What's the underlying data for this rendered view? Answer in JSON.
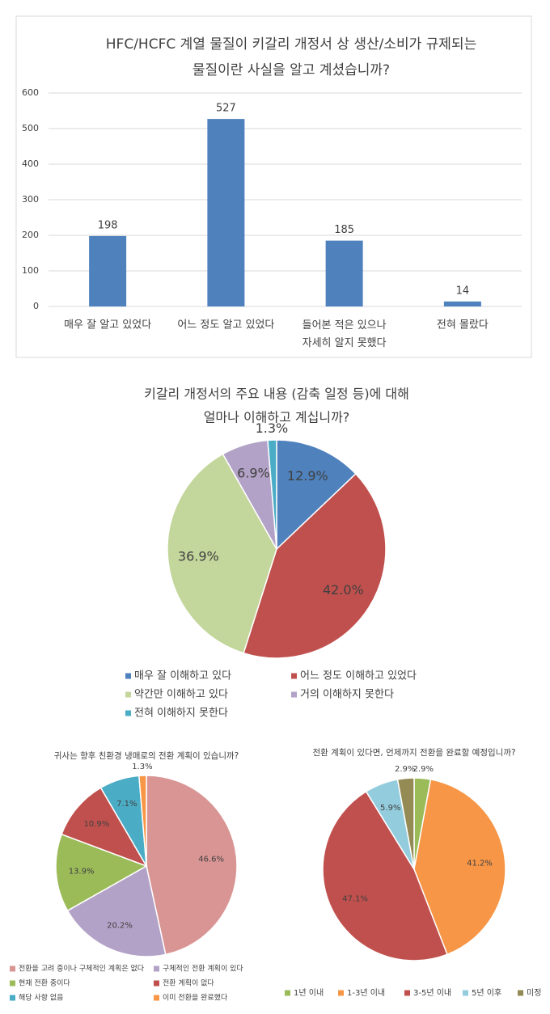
{
  "chart_data": [
    {
      "type": "bar",
      "title": [
        "HFC/HCFC 계열 물질이 키갈리 개정서 상 생산/소비가 규제되는",
        "물질이란 사실을 알고 계셨습니까?"
      ],
      "categories": [
        "매우 잘 알고 있었다",
        "어느 정도 알고 있었다",
        "들어본 적은 있으나\n자세히 알지 못했다",
        "전혀 몰랐다"
      ],
      "values": [
        198,
        527,
        185,
        14
      ],
      "color": "#4f81bd",
      "ylim": [
        0,
        600
      ],
      "yticks": [
        0,
        100,
        200,
        300,
        400,
        500,
        600
      ],
      "grid": true
    },
    {
      "type": "pie",
      "title": [
        "키갈리 개정서의 주요 내용 (감축 일정 등)에 대해",
        "얼마나 이해하고 계십니까?"
      ],
      "categories": [
        "매우 잘 이해하고 있다",
        "어느 정도 이해하고 있었다",
        "약간만 이해하고 있다",
        "거의 이해하지 못한다",
        "전혀 이해하지 못한다"
      ],
      "values": [
        12.9,
        42.0,
        36.9,
        6.9,
        1.3
      ],
      "value_labels": [
        "12.9%",
        "42.0%",
        "36.9%",
        "6.9%",
        "1.3%"
      ],
      "colors": [
        "#4f81bd",
        "#c0504d",
        "#c3d69b",
        "#b3a2c7",
        "#4bacc6"
      ]
    },
    {
      "type": "pie",
      "title": [
        "귀사는 향후 친환경 냉매로의 전환 계획이 있습니까?"
      ],
      "categories": [
        "전환을 고려 중이나 구체적인 계획은 없다",
        "구체적인 전환 계획이 있다",
        "현재 전환 중이다",
        "전환 계획이 없다",
        "해당 사항 없음",
        "이미 전환을 완료했다"
      ],
      "values": [
        46.6,
        20.2,
        13.9,
        10.9,
        7.1,
        1.3
      ],
      "value_labels": [
        "46.6%",
        "20.2%",
        "13.9%",
        "10.9%",
        "7.1%",
        "1.3%"
      ],
      "colors": [
        "#d99594",
        "#b3a2c7",
        "#9bbb59",
        "#c0504d",
        "#4bacc6",
        "#f79646"
      ]
    },
    {
      "type": "pie",
      "title": [
        "전환 계획이 있다면, 언제까지 전환을 완료할 예정입니까?"
      ],
      "categories": [
        "1년 이내",
        "1-3년 이내",
        "3-5년 이내",
        "5년 이후",
        "미정"
      ],
      "values": [
        2.9,
        41.2,
        47.1,
        5.9,
        2.9
      ],
      "value_labels": [
        "2.9%",
        "41.2%",
        "47.1%",
        "5.9%",
        "2.9%"
      ],
      "colors": [
        "#9bbb59",
        "#f79646",
        "#c0504d",
        "#93cddd",
        "#948a54"
      ]
    }
  ]
}
